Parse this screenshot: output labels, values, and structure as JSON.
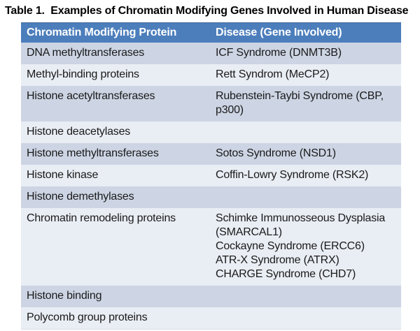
{
  "title": "Table 1.  Examples of Chromatin Modifying Genes Involved in Human Disease",
  "colors": {
    "header_bg": "#4C7EBC",
    "header_text": "#FFFFFF",
    "band_dark": "#CDD5E4",
    "band_light": "#E9EDF4",
    "body_text": "#1A1A1A"
  },
  "table": {
    "columns": [
      "Chromatin Modifying Protein",
      "Disease (Gene Involved)"
    ],
    "rows": [
      {
        "protein": "DNA methyltransferases",
        "disease_lines": [
          "ICF Syndrome (DNMT3B)"
        ]
      },
      {
        "protein": "Methyl-binding proteins",
        "disease_lines": [
          "Rett Syndrom (MeCP2)"
        ]
      },
      {
        "protein": "Histone acetyltransferases",
        "disease_lines": [
          "Rubenstein-Taybi Syndrome (CBP,",
          "p300)"
        ]
      },
      {
        "protein": "Histone deacetylases",
        "disease_lines": []
      },
      {
        "protein": "Histone methyltransferases",
        "disease_lines": [
          "Sotos Syndrome (NSD1)"
        ]
      },
      {
        "protein": "Histone kinase",
        "disease_lines": [
          "Coffin-Lowry Syndrome (RSK2)"
        ]
      },
      {
        "protein": "Histone demethylases",
        "disease_lines": []
      },
      {
        "protein": "Chromatin remodeling proteins",
        "disease_lines": [
          "Schimke Immunosseous Dysplasia",
          "(SMARCAL1)",
          "Cockayne Syndrome (ERCC6)",
          "ATR-X Syndrome (ATRX)",
          "CHARGE Syndrome (CHD7)"
        ]
      },
      {
        "protein": "Histone binding",
        "disease_lines": []
      },
      {
        "protein": "Polycomb group proteins",
        "disease_lines": []
      }
    ]
  }
}
